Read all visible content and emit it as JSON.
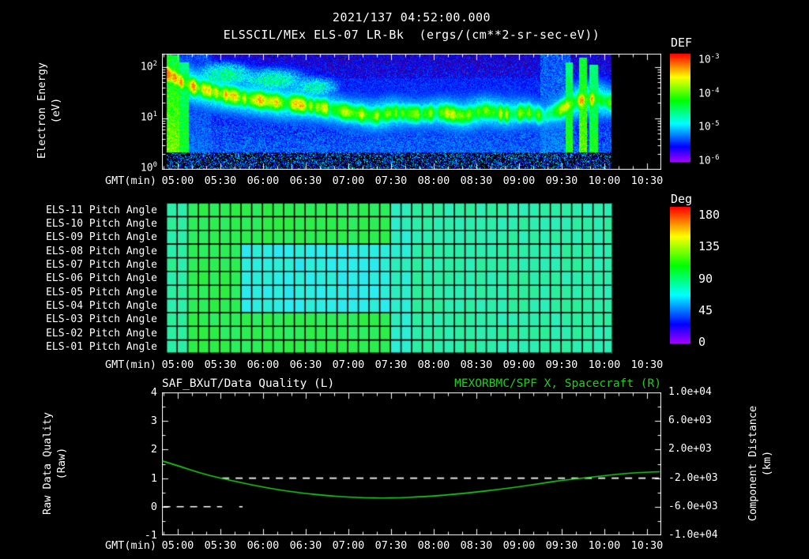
{
  "header": {
    "datetime": "2021/137 04:52:00.000",
    "title": "ELSSCIL/MEx ELS-07 LR-Bk",
    "units": "(ergs/(cm**2-sr-sec-eV))"
  },
  "colors": {
    "background": "#000000",
    "foreground": "#ffffff",
    "green": "#22cc22"
  },
  "time_axis": {
    "label": "GMT(min)",
    "tick_labels": [
      "05:00",
      "05:30",
      "06:00",
      "06:30",
      "07:00",
      "07:30",
      "08:00",
      "08:30",
      "09:00",
      "09:30",
      "10:00",
      "10:30"
    ]
  },
  "spectrogram_panel": {
    "ylabel_line1": "Electron Energy",
    "ylabel_line2": "(eV)",
    "y_ticks": [
      {
        "mant": "10",
        "exp": "2"
      },
      {
        "mant": "10",
        "exp": "1"
      },
      {
        "mant": "10",
        "exp": "0"
      }
    ],
    "colorbar_title": "DEF",
    "colorbar_ticks": [
      {
        "mant": "10",
        "exp": "-3"
      },
      {
        "mant": "10",
        "exp": "-4"
      },
      {
        "mant": "10",
        "exp": "-5"
      },
      {
        "mant": "10",
        "exp": "-6"
      }
    ]
  },
  "pitch_panel": {
    "row_labels": [
      "ELS-11 Pitch Angle",
      "ELS-10 Pitch Angle",
      "ELS-09 Pitch Angle",
      "ELS-08 Pitch Angle",
      "ELS-07 Pitch Angle",
      "ELS-06 Pitch Angle",
      "ELS-05 Pitch Angle",
      "ELS-04 Pitch Angle",
      "ELS-03 Pitch Angle",
      "ELS-02 Pitch Angle",
      "ELS-01 Pitch Angle"
    ],
    "colorbar_title": "Deg",
    "colorbar_ticks": [
      "180",
      "135",
      "90",
      "45",
      "0"
    ]
  },
  "line_panel": {
    "left_title": "SAF_BXuT/Data Quality (L)",
    "right_title": "MEXORBMC/SPF X, Spacecraft (R)",
    "left_ylabel_line1": "Raw Data Quality",
    "left_ylabel_line2": "(Raw)",
    "right_ylabel_line1": "Component Distance",
    "right_ylabel_line2": "(km)",
    "left_ticks": [
      "4",
      "3",
      "2",
      "1",
      "0",
      "-1"
    ],
    "right_ticks": [
      "1.0e+04",
      "6.0e+03",
      "2.0e+03",
      "-2.0e+03",
      "-6.0e+03",
      "-1.0e+04"
    ]
  },
  "chart_data": [
    {
      "type": "heatmap",
      "title": "ELSSCIL/MEx ELS-07 LR-Bk (ergs/(cm**2-sr-sec-eV))",
      "xlabel": "GMT(min)",
      "ylabel": "Electron Energy (eV)",
      "x_ticks": [
        "05:00",
        "05:30",
        "06:00",
        "06:30",
        "07:00",
        "07:30",
        "08:00",
        "08:30",
        "09:00",
        "09:30",
        "10:00",
        "10:30"
      ],
      "x_range_hours": [
        4.815,
        10.667
      ],
      "y_scale": "log",
      "y_range_eV": [
        1,
        180
      ],
      "colorbar": {
        "label": "DEF",
        "units": "ergs/(cm**2-sr-sec-eV)",
        "tick_values": [
          "1e-3",
          "1e-4",
          "1e-5",
          "1e-6"
        ]
      },
      "data_start_hours": 4.867,
      "data_end_hours": 10.083,
      "background_level": 0.24,
      "low_energy_cutoff_eV": 2.2,
      "flux_band": {
        "center_eV_points": [
          [
            4.87,
            75
          ],
          [
            5.05,
            50
          ],
          [
            5.2,
            40
          ],
          [
            5.5,
            30
          ],
          [
            5.8,
            24
          ],
          [
            6.1,
            21
          ],
          [
            6.4,
            19
          ],
          [
            6.7,
            16
          ],
          [
            7.0,
            13
          ],
          [
            7.3,
            11
          ],
          [
            7.55,
            13
          ],
          [
            7.8,
            12
          ],
          [
            8.1,
            13
          ],
          [
            8.35,
            11
          ],
          [
            8.6,
            14
          ],
          [
            8.85,
            12
          ],
          [
            9.1,
            13
          ],
          [
            9.3,
            11
          ],
          [
            9.5,
            15
          ],
          [
            9.7,
            22
          ],
          [
            9.9,
            24
          ],
          [
            10.08,
            20
          ]
        ],
        "peak_level_points": [
          [
            4.87,
            0.92
          ],
          [
            5.1,
            0.8
          ],
          [
            5.4,
            0.74
          ],
          [
            5.8,
            0.7
          ],
          [
            6.2,
            0.72
          ],
          [
            6.6,
            0.66
          ],
          [
            7.0,
            0.62
          ],
          [
            7.4,
            0.68
          ],
          [
            7.8,
            0.6
          ],
          [
            8.2,
            0.66
          ],
          [
            8.6,
            0.68
          ],
          [
            9.0,
            0.62
          ],
          [
            9.3,
            0.55
          ],
          [
            9.6,
            0.7
          ],
          [
            9.9,
            0.74
          ],
          [
            10.08,
            0.66
          ]
        ],
        "width_decades": 0.16
      },
      "patches": [
        {
          "t": 5.55,
          "dt": 0.3,
          "e_eV": 70,
          "de": 0.2,
          "level": 0.5
        },
        {
          "t": 6.1,
          "dt": 0.35,
          "e_eV": 55,
          "de": 0.2,
          "level": 0.48
        },
        {
          "t": 6.6,
          "dt": 0.25,
          "e_eV": 40,
          "de": 0.18,
          "level": 0.45
        }
      ],
      "bright_columns": [
        {
          "t0": 4.867,
          "t1": 5.02,
          "top_eV": 170,
          "level": 0.8
        },
        {
          "t0": 5.02,
          "t1": 5.13,
          "top_eV": 120,
          "level": 0.68
        },
        {
          "t0": 9.55,
          "t1": 9.63,
          "top_eV": 120,
          "level": 0.7
        },
        {
          "t0": 9.7,
          "t1": 9.8,
          "top_eV": 150,
          "level": 0.78
        },
        {
          "t0": 9.82,
          "t1": 9.93,
          "top_eV": 110,
          "level": 0.68
        }
      ],
      "haze_regions": [
        {
          "t0": 4.867,
          "t1": 5.4,
          "top_eV": 180,
          "level": 0.27
        },
        {
          "t0": 9.25,
          "t1": 9.6,
          "top_eV": 180,
          "level": 0.3
        },
        {
          "t0": 7.0,
          "t1": 9.25,
          "top_eV": 60,
          "level": 0.21
        }
      ]
    },
    {
      "type": "heatmap",
      "title": "ELS Pitch Angles",
      "row_labels": [
        "ELS-11",
        "ELS-10",
        "ELS-09",
        "ELS-08",
        "ELS-07",
        "ELS-06",
        "ELS-05",
        "ELS-04",
        "ELS-03",
        "ELS-02",
        "ELS-01"
      ],
      "value_units": "degrees",
      "x_range_hours": [
        4.815,
        10.667
      ],
      "data_start_hours": 4.867,
      "data_end_hours": 10.083,
      "cell_minutes": 7.5,
      "base_deg": 95,
      "regions": [
        {
          "t0": 4.867,
          "t1": 5.15,
          "row0": 0,
          "row1": 10,
          "deg": 80
        },
        {
          "t0": 5.8,
          "t1": 7.45,
          "row0": 3,
          "row1": 7,
          "deg": 66
        },
        {
          "t0": 7.45,
          "t1": 7.72,
          "row0": 0,
          "row1": 10,
          "deg": 72
        },
        {
          "t0": 7.72,
          "t1": 10.083,
          "row0": 0,
          "row1": 10,
          "deg": 78
        }
      ],
      "colorbar": {
        "label": "Deg",
        "ticks": [
          180,
          135,
          90,
          45,
          0
        ],
        "range": [
          0,
          180
        ]
      }
    },
    {
      "type": "line",
      "x_range_hours": [
        4.815,
        10.667
      ],
      "left_axis": {
        "label": "Raw Data Quality (Raw)",
        "range": [
          -1,
          4
        ],
        "ticks": [
          4,
          3,
          2,
          1,
          0,
          -1
        ]
      },
      "right_axis": {
        "label": "Component Distance (km)",
        "range": [
          -10000,
          10000
        ],
        "ticks": [
          10000,
          6000,
          2000,
          -2000,
          -6000,
          -10000
        ]
      },
      "series": [
        {
          "name": "MEXORBMC/SPF X, Spacecraft (R)",
          "axis": "right",
          "color": "green",
          "style": "solid",
          "x_hours": [
            4.82,
            5.0,
            5.25,
            5.5,
            5.75,
            6.0,
            6.25,
            6.5,
            6.75,
            7.0,
            7.2,
            7.4,
            7.6,
            7.8,
            8.0,
            8.25,
            8.5,
            8.75,
            9.0,
            9.25,
            9.5,
            9.75,
            10.0,
            10.25,
            10.5,
            10.65
          ],
          "y_km": [
            400,
            -250,
            -1250,
            -2000,
            -2650,
            -3250,
            -3750,
            -4150,
            -4450,
            -4650,
            -4750,
            -4790,
            -4750,
            -4650,
            -4500,
            -4250,
            -3950,
            -3600,
            -3200,
            -2750,
            -2300,
            -2000,
            -1650,
            -1350,
            -1150,
            -1100
          ]
        },
        {
          "name": "SAF_BXuT/Data Quality (L)",
          "axis": "left",
          "color": "white",
          "style": "dashed",
          "segments": [
            {
              "value": 0,
              "t0": 4.83,
              "t1": 5.52
            },
            {
              "value": 0,
              "t0": 5.72,
              "t1": 5.76
            },
            {
              "value": 1,
              "t0": 5.52,
              "t1": 10.65
            }
          ]
        }
      ]
    }
  ]
}
